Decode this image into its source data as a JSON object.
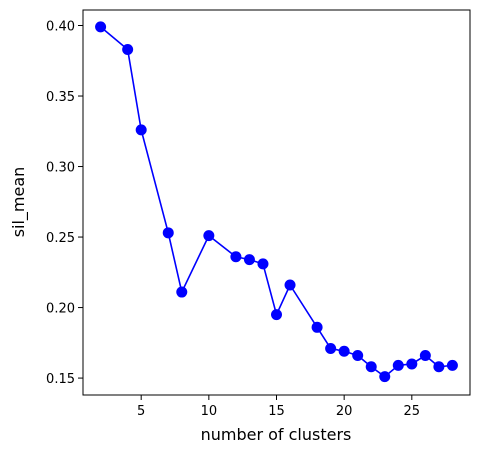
{
  "chart_data": {
    "type": "line",
    "x_label": "number of clusters",
    "y_label": "sil_mean",
    "x": [
      2,
      4,
      5,
      7,
      8,
      10,
      12,
      13,
      14,
      15,
      16,
      18,
      19,
      20,
      21,
      22,
      23,
      24,
      25,
      26,
      27,
      28
    ],
    "series": [
      {
        "name": "sil_mean",
        "color": "#0000ff",
        "values": [
          0.399,
          0.383,
          0.326,
          0.253,
          0.211,
          0.251,
          0.236,
          0.234,
          0.231,
          0.195,
          0.216,
          0.186,
          0.171,
          0.169,
          0.166,
          0.158,
          0.151,
          0.159,
          0.16,
          0.166,
          0.158,
          0.159
        ]
      }
    ],
    "xlim": [
      0.7,
      29.3
    ],
    "ylim": [
      0.138,
      0.411
    ],
    "xticks": [
      5,
      10,
      15,
      20,
      25
    ],
    "yticks": [
      0.15,
      {
        "value": 0.2,
        "label": "0.20"
      },
      0.25,
      {
        "value": 0.3,
        "label": "0.30"
      },
      0.35,
      {
        "value": 0.4,
        "label": "0.40"
      }
    ],
    "grid": false,
    "marker": "circle"
  }
}
